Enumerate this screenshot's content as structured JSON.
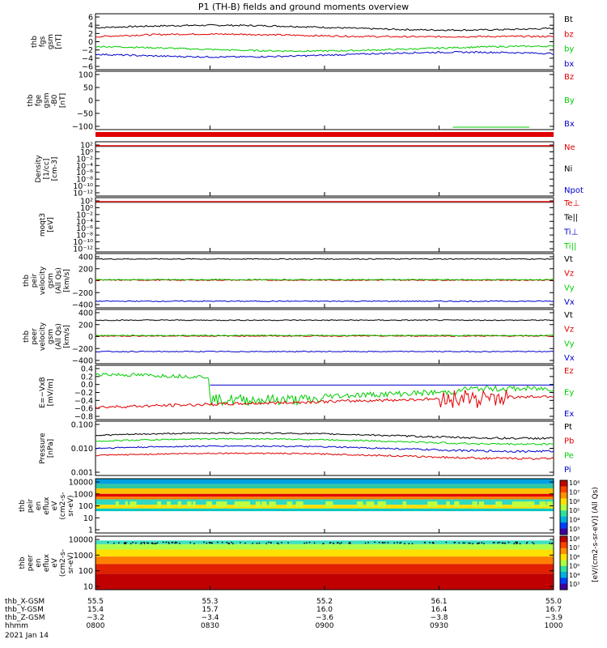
{
  "title": "P1 (TH-B) fields and ground moments overview",
  "colors": {
    "black": "#000000",
    "red": "#e00000",
    "green": "#00cc00",
    "blue": "#0000cc",
    "cyan": "#00aaaa"
  },
  "chart_data": [
    {
      "type": "line",
      "panel": "fgs",
      "ylabel": [
        "thb",
        "fgs",
        "gsm",
        "[nT]"
      ],
      "yticks": [
        "6",
        "4",
        "2",
        "0",
        "−2",
        "−4",
        "−6"
      ],
      "ylim": [
        -6,
        6.5
      ],
      "series": [
        {
          "name": "Bt",
          "color": "#000000",
          "level": 3.8
        },
        {
          "name": "bz",
          "color": "#e00000",
          "level": 1.0
        },
        {
          "name": "by",
          "color": "#00cc00",
          "level": -1.5
        },
        {
          "name": "bx",
          "color": "#0000cc",
          "level": -3.0
        }
      ]
    },
    {
      "type": "line",
      "panel": "fge",
      "ylabel": [
        "thb",
        "fge",
        "gsm",
        "-B0",
        "[nT]"
      ],
      "yticks": [
        "100",
        "50",
        "0",
        "−50",
        "−100"
      ],
      "ylim": [
        -130,
        100
      ],
      "series": [
        {
          "name": "Bz",
          "color": "#e00000"
        },
        {
          "name": "By",
          "color": "#00cc00"
        },
        {
          "name": "Bx",
          "color": "#0000cc"
        }
      ]
    },
    {
      "type": "line",
      "panel": "density",
      "ylabel": [
        "Density",
        "[1/cc]",
        "[cm-3]"
      ],
      "yticks": [
        "10²",
        "10⁰",
        "10⁻²",
        "10⁻⁴",
        "10⁻⁶",
        "10⁻⁸",
        "10⁻¹⁰",
        "10⁻¹²"
      ],
      "scale": "log",
      "series": [
        {
          "name": "Ne",
          "color": "#e00000"
        },
        {
          "name": "Ni",
          "color": "#000000"
        },
        {
          "name": "Npot",
          "color": "#0000cc"
        }
      ]
    },
    {
      "type": "line",
      "panel": "temperature",
      "ylabel": [
        "moqt3",
        "[eV]"
      ],
      "yticks": [
        "10²",
        "10⁰",
        "10⁻²",
        "10⁻⁴",
        "10⁻⁶",
        "10⁻⁸",
        "10⁻¹⁰",
        "10⁻¹²"
      ],
      "scale": "log",
      "series": [
        {
          "name": "Te⊥",
          "color": "#e00000"
        },
        {
          "name": "Te||",
          "color": "#000000"
        },
        {
          "name": "Ti⊥",
          "color": "#0000cc"
        },
        {
          "name": "Ti||",
          "color": "#00cc00"
        }
      ]
    },
    {
      "type": "line",
      "panel": "peir velocity",
      "ylabel": [
        "thb",
        "peir",
        "velocity",
        "gsm",
        "(All Qs)",
        "[km/s]"
      ],
      "yticks": [
        "400",
        "200",
        "0",
        "−200",
        "−400"
      ],
      "ylim": [
        -440,
        420
      ],
      "series": [
        {
          "name": "Vt",
          "color": "#000000",
          "level": 380
        },
        {
          "name": "Vz",
          "color": "#e00000",
          "level": 0
        },
        {
          "name": "Vy",
          "color": "#00cc00",
          "level": 8
        },
        {
          "name": "Vx",
          "color": "#0000cc",
          "level": -380
        }
      ]
    },
    {
      "type": "line",
      "panel": "peer velocity",
      "ylabel": [
        "thb",
        "peer",
        "velocity",
        "gsm",
        "(All Qs)",
        "[km/s]"
      ],
      "yticks": [
        "400",
        "200",
        "0",
        "−200",
        "−400"
      ],
      "ylim": [
        -440,
        420
      ],
      "series": [
        {
          "name": "Vt",
          "color": "#000000",
          "level": 285
        },
        {
          "name": "Vz",
          "color": "#e00000",
          "level": 0
        },
        {
          "name": "Vy",
          "color": "#00cc00",
          "level": 10
        },
        {
          "name": "Vx",
          "color": "#0000cc",
          "level": -280
        }
      ]
    },
    {
      "type": "line",
      "panel": "efield",
      "ylabel": [
        "E=−VxB",
        "[mV/m]"
      ],
      "yticks": [
        "0.4",
        "0.2",
        "0.0",
        "−0.2",
        "−0.4",
        "−0.6",
        "−0.8"
      ],
      "ylim": [
        -0.85,
        0.45
      ],
      "series": [
        {
          "name": "Ez",
          "color": "#e00000"
        },
        {
          "name": "Ey",
          "color": "#00cc00"
        },
        {
          "name": "Ex",
          "color": "#0000cc",
          "level": 0.0
        }
      ]
    },
    {
      "type": "line",
      "panel": "pressure",
      "scale": "log",
      "ylabel": [
        "Pressure",
        "[nPa]"
      ],
      "yticks": [
        "0.100",
        "0.010",
        "0.001"
      ],
      "ylim": [
        0.001,
        0.1
      ],
      "series": [
        {
          "name": "Pt",
          "color": "#000000",
          "level": 0.035
        },
        {
          "name": "Pb",
          "color": "#e00000",
          "level": 0.005
        },
        {
          "name": "Pe",
          "color": "#00cc00",
          "level": 0.02
        },
        {
          "name": "Pi",
          "color": "#0000cc",
          "level": 0.01
        }
      ]
    },
    {
      "type": "heatmap",
      "panel": "peir eflux",
      "ylabel": [
        "thb",
        "peir",
        "en",
        "eflux",
        "eV",
        "(cm2-s-",
        "sr-eV)"
      ],
      "yticks": [
        "10000",
        "1000",
        "100",
        "10",
        "1"
      ],
      "scale": "log"
    },
    {
      "type": "heatmap",
      "panel": "peer eflux",
      "ylabel": [
        "thb",
        "peer",
        "en",
        "eflux",
        "eV",
        "(cm2-s-",
        "sr-eV)"
      ],
      "yticks": [
        "10000",
        "1000",
        "100",
        "10"
      ],
      "scale": "log"
    }
  ],
  "colorbar": {
    "label": "[eV/(cm2-s-sr-eV)] (All Qs)",
    "upper_ticks": [
      "10⁸",
      "10⁷",
      "10⁶",
      "10⁵",
      "10⁴",
      "10³"
    ],
    "lower_ticks": [
      "10⁸",
      "10⁷",
      "10⁶",
      "10⁵",
      "10⁴",
      "10³"
    ]
  },
  "xaxis": {
    "rows": [
      {
        "label": "thb_X-GSM",
        "values": [
          "55.5",
          "55.3",
          "55.2",
          "56.1",
          "55.0"
        ]
      },
      {
        "label": "thb_Y-GSM",
        "values": [
          "15.4",
          "15.7",
          "16.0",
          "16.4",
          "16.7"
        ]
      },
      {
        "label": "thb_Z-GSM",
        "values": [
          "−3.2",
          "−3.4",
          "−3.6",
          "−3.8",
          "−3.9"
        ]
      },
      {
        "label": "hhmm",
        "values": [
          "0800",
          "0830",
          "0900",
          "0930",
          "1000"
        ]
      }
    ],
    "date": "2021 Jan 14"
  }
}
